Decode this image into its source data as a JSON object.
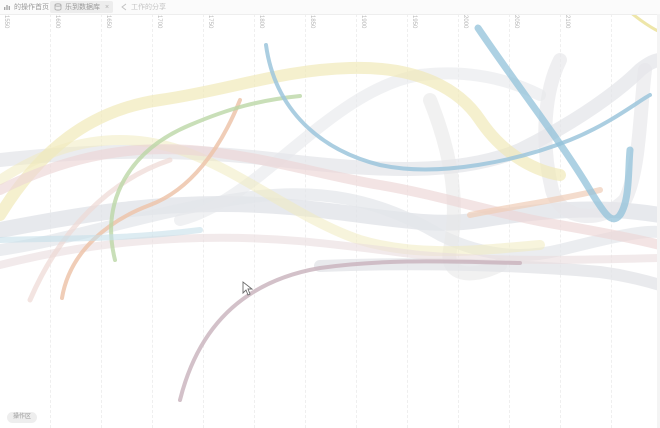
{
  "tabs": [
    {
      "label": "的操作首页",
      "icon": "chart-icon"
    },
    {
      "label": "乐到数据库",
      "icon": "database-icon"
    },
    {
      "label": "工作的分享",
      "icon": "share-icon"
    }
  ],
  "ruler_ticks": [
    "1550",
    "1600",
    "1650",
    "1700",
    "1750",
    "1800",
    "1850",
    "1900",
    "1950",
    "2000",
    "2050",
    "2100"
  ],
  "badge": {
    "label": "操作区"
  },
  "colors": {
    "background": "#ffffff",
    "stream_blue": "#8fc0d8",
    "stream_grey": "#d8dbe0",
    "stream_yellow": "#efe9b0",
    "stream_pink": "#ead2d2",
    "stream_orange": "#edc2a8",
    "stream_green": "#b9d6a4",
    "stream_mauve": "#bfa7b0"
  }
}
